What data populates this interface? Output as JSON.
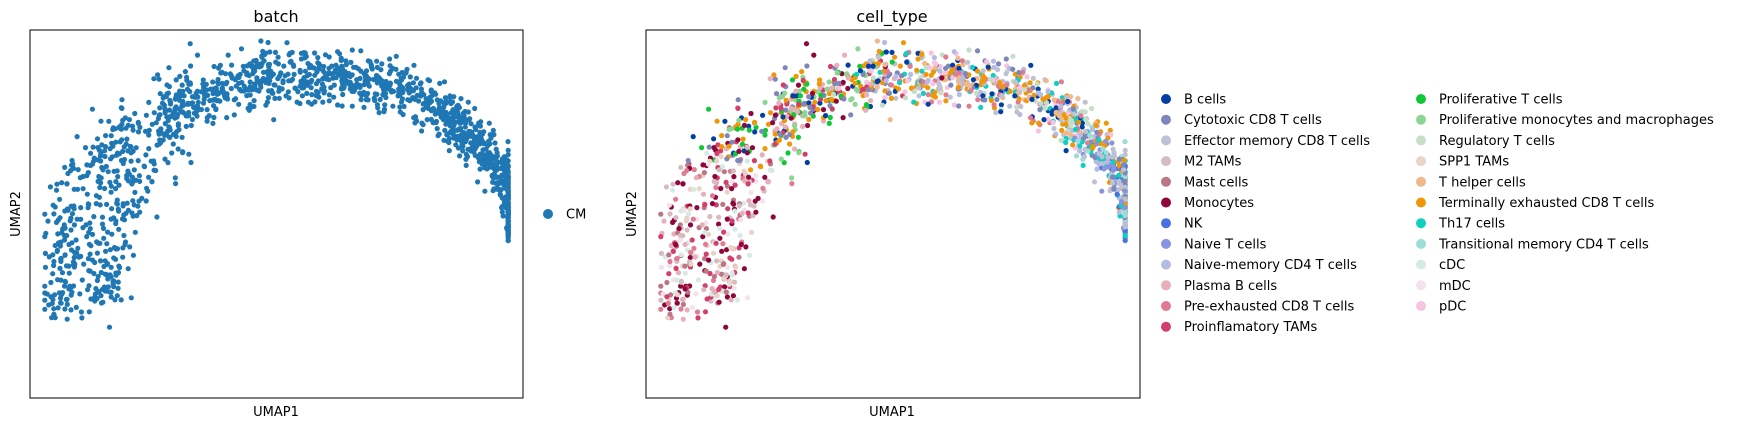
{
  "chart_data": [
    {
      "type": "scatter",
      "title": "batch",
      "xlabel": "UMAP1",
      "ylabel": "UMAP2",
      "xlim": [
        0,
        1
      ],
      "ylim": [
        0,
        1
      ],
      "grid": false,
      "legend_placement": "right",
      "legend": [
        {
          "label": "CM",
          "color": "#1f77b4"
        }
      ],
      "n_points_approx": 1500
    },
    {
      "type": "scatter",
      "title": "cell_type",
      "xlabel": "UMAP1",
      "ylabel": "UMAP2",
      "xlim": [
        0,
        1
      ],
      "ylim": [
        0,
        1
      ],
      "grid": false,
      "legend_placement": "right",
      "legend": [
        {
          "label": "B cells",
          "color": "#023fa5"
        },
        {
          "label": "Cytotoxic CD8 T cells",
          "color": "#7d87b9"
        },
        {
          "label": "Effector memory CD8 T cells",
          "color": "#bec1d4"
        },
        {
          "label": "M2 TAMs",
          "color": "#d6bcc0"
        },
        {
          "label": "Mast cells",
          "color": "#bb7784"
        },
        {
          "label": "Monocytes",
          "color": "#8e063b"
        },
        {
          "label": "NK",
          "color": "#4a6fe3"
        },
        {
          "label": "Naive T cells",
          "color": "#8595e1"
        },
        {
          "label": "Naive-memory CD4 T cells",
          "color": "#b5bbe3"
        },
        {
          "label": "Plasma B cells",
          "color": "#e6afb9"
        },
        {
          "label": "Pre-exhausted CD8 T cells",
          "color": "#e07b91"
        },
        {
          "label": "Proinflamatory TAMs",
          "color": "#d33f6a"
        },
        {
          "label": "Proliferative T cells",
          "color": "#11c638"
        },
        {
          "label": "Proliferative monocytes and macrophages",
          "color": "#8dd593"
        },
        {
          "label": "Regulatory T cells",
          "color": "#c6dec7"
        },
        {
          "label": "SPP1 TAMs",
          "color": "#ead3c6"
        },
        {
          "label": "T helper cells",
          "color": "#f0b98d"
        },
        {
          "label": "Terminally exhausted CD8 T cells",
          "color": "#ef9708"
        },
        {
          "label": "Th17 cells",
          "color": "#0fcfc0"
        },
        {
          "label": "Transitional memory CD4 T cells",
          "color": "#9cded6"
        },
        {
          "label": "cDC",
          "color": "#d5eae7"
        },
        {
          "label": "mDC",
          "color": "#f3e1eb"
        },
        {
          "label": "pDC",
          "color": "#f6c4e1"
        }
      ]
    }
  ]
}
